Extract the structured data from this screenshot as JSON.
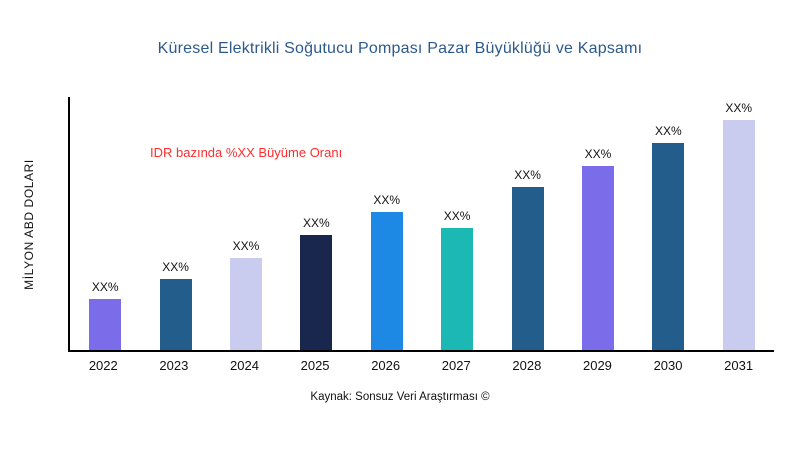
{
  "chart_data": {
    "type": "bar",
    "title": "Küresel Elektrikli Soğutucu Pompası Pazar Büyüklüğü ve Kapsamı",
    "ylabel": "MİLYON ABD DOLARI",
    "xlabel": "",
    "annotation": "IDR bazında %XX Büyüme Oranı",
    "source": "Kaynak: Sonsuz Veri Araştırması ©",
    "categories": [
      "2022",
      "2023",
      "2024",
      "2025",
      "2026",
      "2027",
      "2028",
      "2029",
      "2030",
      "2031"
    ],
    "values": [
      22,
      31,
      40,
      50,
      60,
      53,
      71,
      80,
      90,
      100
    ],
    "bar_labels": [
      "XX%",
      "XX%",
      "XX%",
      "XX%",
      "XX%",
      "XX%",
      "XX%",
      "XX%",
      "XX%",
      "XX%"
    ],
    "colors": [
      "#7B6CEA",
      "#235D8C",
      "#C9CCEF",
      "#19274F",
      "#1E88E5",
      "#1CB9B4",
      "#235D8C",
      "#7B6CEA",
      "#235D8C",
      "#C9CCEF"
    ],
    "ylim": [
      0,
      110
    ],
    "grid": false,
    "legend": "none",
    "title_color": "#2D5A8E",
    "annotation_color": "#FF2D2D"
  }
}
